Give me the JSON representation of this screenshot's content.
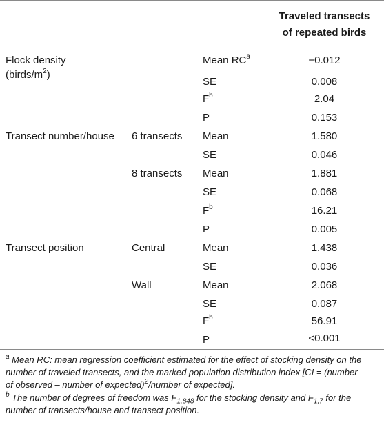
{
  "header": {
    "line1": "Traveled transects",
    "line2": "of repeated birds"
  },
  "rows": {
    "fd_label1": "Flock density",
    "fd_label2_pre": "(birds/m",
    "fd_label2_sup": "2",
    "fd_label2_post": ")",
    "fd_meanrc": "Mean RC",
    "fd_meanrc_sup": "a",
    "fd_meanrc_val": "−0.012",
    "fd_se": "SE",
    "fd_se_val": "0.008",
    "fd_f": "F",
    "fd_f_sup": "b",
    "fd_f_val": "2.04",
    "fd_p": "P",
    "fd_p_val": "0.153",
    "tn_label": "Transect number/house",
    "tn_g1": "6 transects",
    "tn_g1_mean": "Mean",
    "tn_g1_mean_val": "1.580",
    "tn_g1_se": "SE",
    "tn_g1_se_val": "0.046",
    "tn_g2": "8 transects",
    "tn_g2_mean": "Mean",
    "tn_g2_mean_val": "1.881",
    "tn_g2_se": "SE",
    "tn_g2_se_val": "0.068",
    "tn_f": "F",
    "tn_f_sup": "b",
    "tn_f_val": "16.21",
    "tn_p": "P",
    "tn_p_val": "0.005",
    "tp_label": "Transect position",
    "tp_g1": "Central",
    "tp_g1_mean": "Mean",
    "tp_g1_mean_val": "1.438",
    "tp_g1_se": "SE",
    "tp_g1_se_val": "0.036",
    "tp_g2": "Wall",
    "tp_g2_mean": "Mean",
    "tp_g2_mean_val": "2.068",
    "tp_g2_se": "SE",
    "tp_g2_se_val": "0.087",
    "tp_f": "F",
    "tp_f_sup": "b",
    "tp_f_val": "56.91",
    "tp_p": "P",
    "tp_p_val": "<0.001"
  },
  "footnotes": {
    "a_mark": "a",
    "a_text1": " Mean RC: mean regression coefficient estimated for the effect of stocking density on the",
    "a_text2": "number of traveled transects, and the marked population distribution index [CI = (number",
    "a_text3_pre": "of observed – number of expected)",
    "a_text3_sup": "2",
    "a_text3_post": "/number of expected].",
    "b_mark": "b",
    "b_text1_pre": " The number of degrees of freedom was F",
    "b_text1_sub1": "1,848",
    "b_text1_mid": " for the stocking density and F",
    "b_text1_sub2": "1,7",
    "b_text1_post": " for the",
    "b_text2": "number of transects/house and transect position."
  }
}
